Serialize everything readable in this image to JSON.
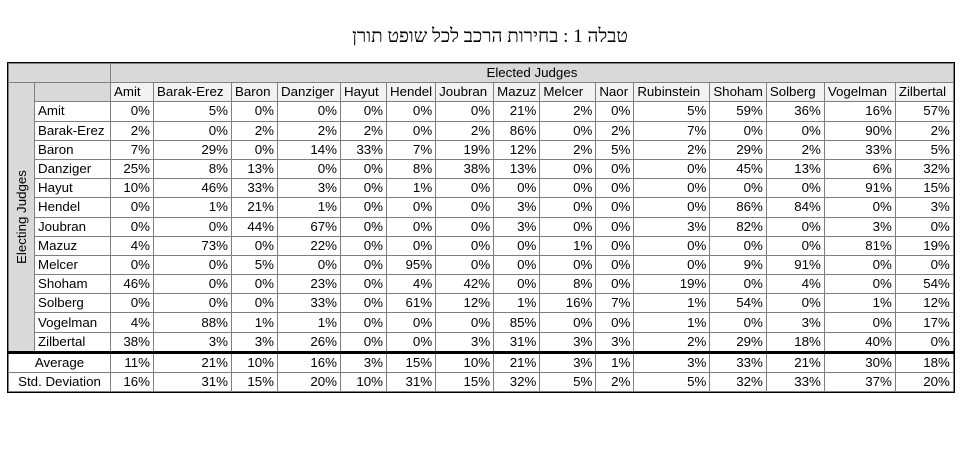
{
  "title": "טבלה 1 : בחירות הרכב לכל שופט תורן",
  "table": {
    "super_header": "Elected Judges",
    "row_group_label": "Electing Judges",
    "columns": [
      "Amit",
      "Barak-Erez",
      "Baron",
      "Danziger",
      "Hayut",
      "Hendel",
      "Joubran",
      "Mazuz",
      "Melcer",
      "Naor",
      "Rubinstein",
      "Shoham",
      "Solberg",
      "Vogelman",
      "Zilbertal"
    ],
    "rows": [
      {
        "name": "Amit",
        "values": [
          "0%",
          "5%",
          "0%",
          "0%",
          "0%",
          "0%",
          "0%",
          "21%",
          "2%",
          "0%",
          "5%",
          "59%",
          "36%",
          "16%",
          "57%"
        ]
      },
      {
        "name": "Barak-Erez",
        "values": [
          "2%",
          "0%",
          "2%",
          "2%",
          "2%",
          "0%",
          "2%",
          "86%",
          "0%",
          "2%",
          "7%",
          "0%",
          "0%",
          "90%",
          "2%"
        ]
      },
      {
        "name": "Baron",
        "values": [
          "7%",
          "29%",
          "0%",
          "14%",
          "33%",
          "7%",
          "19%",
          "12%",
          "2%",
          "5%",
          "2%",
          "29%",
          "2%",
          "33%",
          "5%"
        ]
      },
      {
        "name": "Danziger",
        "values": [
          "25%",
          "8%",
          "13%",
          "0%",
          "0%",
          "8%",
          "38%",
          "13%",
          "0%",
          "0%",
          "0%",
          "45%",
          "13%",
          "6%",
          "32%"
        ]
      },
      {
        "name": "Hayut",
        "values": [
          "10%",
          "46%",
          "33%",
          "3%",
          "0%",
          "1%",
          "0%",
          "0%",
          "0%",
          "0%",
          "0%",
          "0%",
          "0%",
          "91%",
          "15%"
        ]
      },
      {
        "name": "Hendel",
        "values": [
          "0%",
          "1%",
          "21%",
          "1%",
          "0%",
          "0%",
          "0%",
          "3%",
          "0%",
          "0%",
          "0%",
          "86%",
          "84%",
          "0%",
          "3%"
        ]
      },
      {
        "name": "Joubran",
        "values": [
          "0%",
          "0%",
          "44%",
          "67%",
          "0%",
          "0%",
          "0%",
          "3%",
          "0%",
          "0%",
          "3%",
          "82%",
          "0%",
          "3%",
          "0%"
        ]
      },
      {
        "name": "Mazuz",
        "values": [
          "4%",
          "73%",
          "0%",
          "22%",
          "0%",
          "0%",
          "0%",
          "0%",
          "1%",
          "0%",
          "0%",
          "0%",
          "0%",
          "81%",
          "19%"
        ]
      },
      {
        "name": "Melcer",
        "values": [
          "0%",
          "0%",
          "5%",
          "0%",
          "0%",
          "95%",
          "0%",
          "0%",
          "0%",
          "0%",
          "0%",
          "9%",
          "91%",
          "0%",
          "0%"
        ]
      },
      {
        "name": "Shoham",
        "values": [
          "46%",
          "0%",
          "0%",
          "23%",
          "0%",
          "4%",
          "42%",
          "0%",
          "8%",
          "0%",
          "19%",
          "0%",
          "4%",
          "0%",
          "54%"
        ]
      },
      {
        "name": "Solberg",
        "values": [
          "0%",
          "0%",
          "0%",
          "33%",
          "0%",
          "61%",
          "12%",
          "1%",
          "16%",
          "7%",
          "1%",
          "54%",
          "0%",
          "1%",
          "12%"
        ]
      },
      {
        "name": "Vogelman",
        "values": [
          "4%",
          "88%",
          "1%",
          "1%",
          "0%",
          "0%",
          "0%",
          "85%",
          "0%",
          "0%",
          "1%",
          "0%",
          "3%",
          "0%",
          "17%"
        ]
      },
      {
        "name": "Zilbertal",
        "values": [
          "38%",
          "3%",
          "3%",
          "26%",
          "0%",
          "0%",
          "3%",
          "31%",
          "3%",
          "3%",
          "2%",
          "29%",
          "18%",
          "40%",
          "0%"
        ]
      }
    ],
    "summary": [
      {
        "name": "Average",
        "values": [
          "11%",
          "21%",
          "10%",
          "16%",
          "3%",
          "15%",
          "10%",
          "21%",
          "3%",
          "1%",
          "3%",
          "33%",
          "21%",
          "30%",
          "18%"
        ]
      },
      {
        "name": "Std. Deviation",
        "values": [
          "16%",
          "31%",
          "15%",
          "20%",
          "10%",
          "31%",
          "15%",
          "32%",
          "5%",
          "2%",
          "5%",
          "32%",
          "33%",
          "37%",
          "20%"
        ]
      }
    ]
  }
}
